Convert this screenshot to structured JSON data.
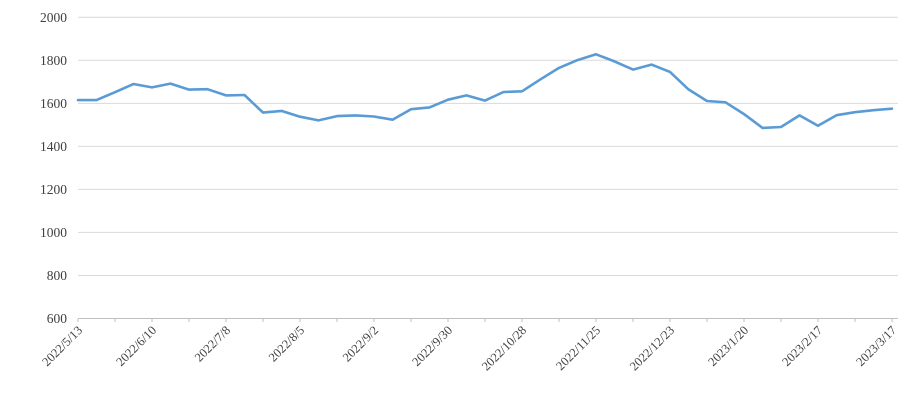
{
  "chart_data": {
    "type": "line",
    "title": "",
    "xlabel": "",
    "ylabel": "",
    "legend": "none",
    "grid": "horizontal",
    "ylim": [
      600,
      2000
    ],
    "ytick_step": 200,
    "y_tick_labels": [
      "2000",
      "1800",
      "1600",
      "1400",
      "1200",
      "1000",
      "800",
      "600"
    ],
    "x_axis_label_every": 4,
    "x_tick_labels": [
      "2022/5/13",
      "2022/6/10",
      "2022/7/8",
      "2022/8/5",
      "2022/9/2",
      "2022/9/30",
      "2022/10/28",
      "2022/11/25",
      "2022/12/23",
      "2023/1/20",
      "2023/2/17",
      "2023/3/17"
    ],
    "x": [
      "2022/5/13",
      "2022/5/20",
      "2022/5/27",
      "2022/6/3",
      "2022/6/10",
      "2022/6/17",
      "2022/6/24",
      "2022/7/1",
      "2022/7/8",
      "2022/7/15",
      "2022/7/22",
      "2022/7/29",
      "2022/8/5",
      "2022/8/12",
      "2022/8/19",
      "2022/8/26",
      "2022/9/2",
      "2022/9/9",
      "2022/9/16",
      "2022/9/23",
      "2022/9/30",
      "2022/10/7",
      "2022/10/14",
      "2022/10/21",
      "2022/10/28",
      "2022/11/4",
      "2022/11/11",
      "2022/11/18",
      "2022/11/25",
      "2022/12/2",
      "2022/12/9",
      "2022/12/16",
      "2022/12/23",
      "2022/12/30",
      "2023/1/6",
      "2023/1/13",
      "2023/1/20",
      "2023/1/27",
      "2023/2/3",
      "2023/2/10",
      "2023/2/17",
      "2023/2/24",
      "2023/3/3",
      "2023/3/10",
      "2023/3/17"
    ],
    "series": [
      {
        "name": "series-1",
        "color": "#5B9BD5",
        "values": [
          1615,
          1615,
          1652,
          1690,
          1674,
          1692,
          1664,
          1666,
          1637,
          1639,
          1557,
          1565,
          1538,
          1521,
          1541,
          1544,
          1539,
          1524,
          1573,
          1581,
          1617,
          1637,
          1613,
          1653,
          1656,
          1712,
          1765,
          1801,
          1828,
          1795,
          1757,
          1780,
          1746,
          1665,
          1611,
          1605,
          1550,
          1486,
          1490,
          1544,
          1496,
          1545,
          1559,
          1568,
          1575
        ]
      }
    ],
    "colors": {
      "gridline": "#D9D9D9",
      "axis_line": "#BFBFBF",
      "tick_mark": "#BFBFBF",
      "label_text": "#3f3f3f",
      "background": "#ffffff"
    }
  }
}
